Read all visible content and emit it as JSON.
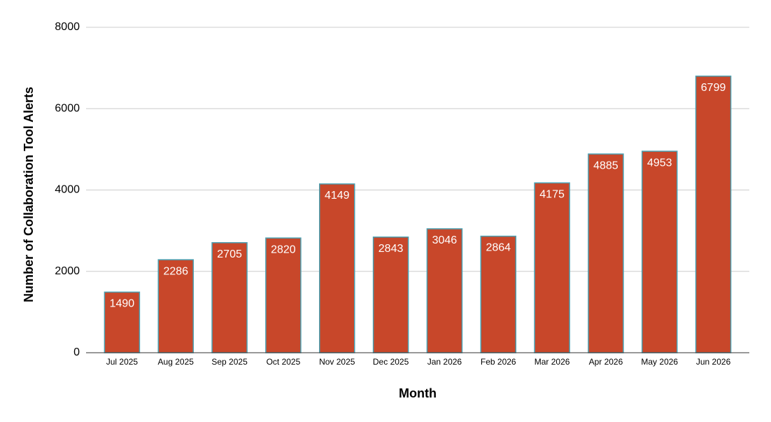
{
  "chart_data": {
    "type": "bar",
    "x_label": "Month",
    "y_label": "Number of Collaboration Tool Alerts",
    "categories": [
      "Jul 2025",
      "Aug 2025",
      "Sep 2025",
      "Oct 2025",
      "Nov 2025",
      "Dec 2025",
      "Jan 2026",
      "Feb 2026",
      "Mar 2026",
      "Apr 2026",
      "May 2026",
      "Jun 2026"
    ],
    "values": [
      1490,
      2286,
      2705,
      2820,
      4149,
      2843,
      3046,
      2864,
      4175,
      4885,
      4953,
      6799
    ],
    "color": "#c8472a",
    "edge_color": "#4a9fb0",
    "ylim": [
      0,
      8000
    ],
    "yticks": [
      0,
      2000,
      4000,
      6000,
      8000
    ],
    "grid": true
  }
}
